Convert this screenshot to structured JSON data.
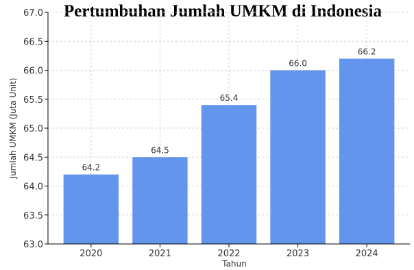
{
  "chart_data": {
    "type": "bar",
    "title": "Pertumbuhan Jumlah UMKM di Indonesia",
    "xlabel": "Tahun",
    "ylabel": "Jumlah UMKM (Juta Unit)",
    "categories": [
      "2020",
      "2021",
      "2022",
      "2023",
      "2024"
    ],
    "values": [
      64.2,
      64.5,
      65.4,
      66.0,
      66.2
    ],
    "data_labels": [
      "64.2",
      "64.5",
      "65.4",
      "66.0",
      "66.2"
    ],
    "ylim": [
      63.0,
      67.0
    ],
    "yticks": [
      "63.0",
      "63.5",
      "64.0",
      "64.5",
      "65.0",
      "65.5",
      "66.0",
      "66.5",
      "67.0"
    ],
    "ytick_values": [
      63.0,
      63.5,
      64.0,
      64.5,
      65.0,
      65.5,
      66.0,
      66.5,
      67.0
    ],
    "grid": true,
    "bar_color": "#6495ED"
  }
}
